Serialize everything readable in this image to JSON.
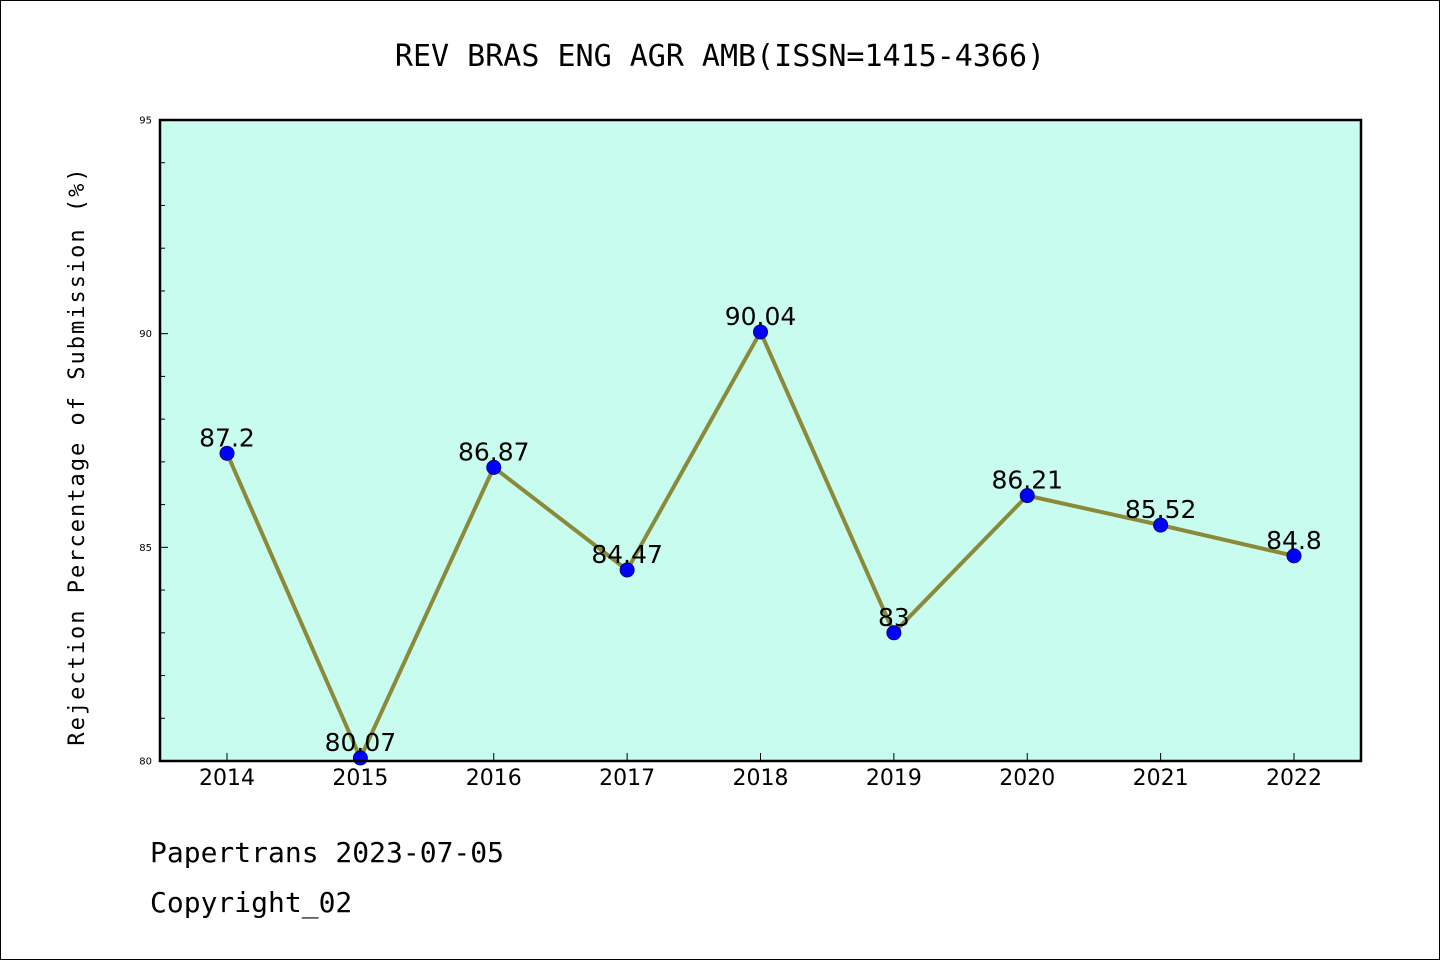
{
  "chart_data": {
    "type": "line",
    "title": "REV BRAS ENG AGR AMB(ISSN=1415-4366)",
    "ylabel": "Rejection Percentage of Submission (%)",
    "xlabel": "",
    "categories": [
      "2014",
      "2015",
      "2016",
      "2017",
      "2018",
      "2019",
      "2020",
      "2021",
      "2022"
    ],
    "values": [
      87.2,
      80.07,
      86.87,
      84.47,
      90.04,
      83,
      86.21,
      85.52,
      84.8
    ],
    "value_labels": [
      "87.2",
      "80.07",
      "86.87",
      "84.47",
      "90.04",
      "83",
      "86.21",
      "85.52",
      "84.8"
    ],
    "ylim": [
      80,
      95
    ],
    "yticks": [
      "80",
      "85",
      "90",
      "95"
    ],
    "grid": false,
    "colors": {
      "plot_background": "#c8fcee",
      "line": "#8b8a3a",
      "marker": "#0000ff"
    }
  },
  "footer": {
    "line1": "Papertrans 2023-07-05",
    "line2": "Copyright_02"
  }
}
